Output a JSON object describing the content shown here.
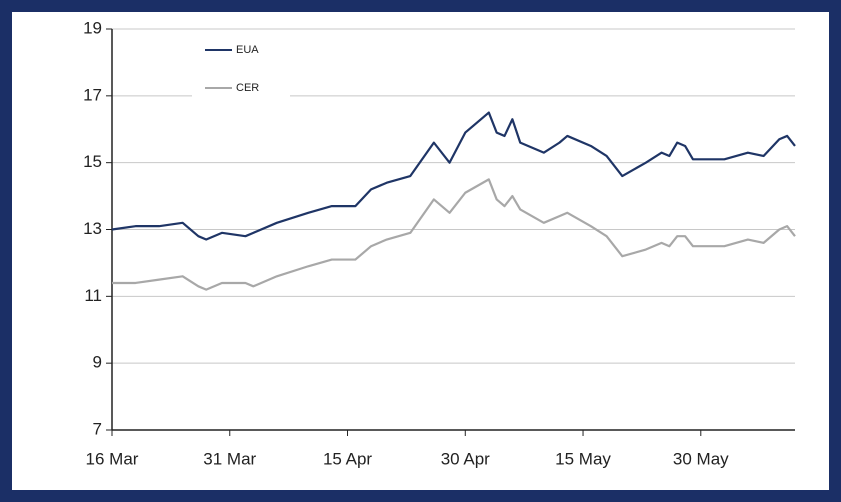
{
  "chart_data": {
    "type": "line",
    "x": [
      "16 Mar",
      "19 Mar",
      "22 Mar",
      "25 Mar",
      "27 Mar",
      "28 Mar",
      "30 Mar",
      "2 Apr",
      "3 Apr",
      "6 Apr",
      "10 Apr",
      "13 Apr",
      "16 Apr",
      "18 Apr",
      "20 Apr",
      "23 Apr",
      "26 Apr",
      "28 Apr",
      "30 Apr",
      "3 May",
      "4 May",
      "5 May",
      "6 May",
      "7 May",
      "10 May",
      "12 May",
      "13 May",
      "16 May",
      "18 May",
      "20 May",
      "23 May",
      "25 May",
      "26 May",
      "27 May",
      "28 May",
      "29 May",
      "2 Jun",
      "5 Jun",
      "7 Jun",
      "9 Jun",
      "10 Jun",
      "11 Jun"
    ],
    "series": [
      {
        "name": "EUA",
        "color": "#1f3566",
        "values": [
          13.0,
          13.1,
          13.1,
          13.2,
          12.8,
          12.7,
          12.9,
          12.8,
          12.9,
          13.2,
          13.5,
          13.7,
          13.7,
          14.2,
          14.4,
          14.6,
          15.6,
          15.0,
          15.9,
          16.5,
          15.9,
          15.8,
          16.3,
          15.6,
          15.3,
          15.6,
          15.8,
          15.5,
          15.2,
          14.6,
          15.0,
          15.3,
          15.2,
          15.6,
          15.5,
          15.1,
          15.1,
          15.3,
          15.2,
          15.7,
          15.8,
          15.5
        ]
      },
      {
        "name": "CER",
        "color": "#a8a8a8",
        "values": [
          11.4,
          11.4,
          11.5,
          11.6,
          11.3,
          11.2,
          11.4,
          11.4,
          11.3,
          11.6,
          11.9,
          12.1,
          12.1,
          12.5,
          12.7,
          12.9,
          13.9,
          13.5,
          14.1,
          14.5,
          13.9,
          13.7,
          14.0,
          13.6,
          13.2,
          13.4,
          13.5,
          13.1,
          12.8,
          12.2,
          12.4,
          12.6,
          12.5,
          12.8,
          12.8,
          12.5,
          12.5,
          12.7,
          12.6,
          13.0,
          13.1,
          12.8
        ]
      }
    ],
    "xlim": [
      "16 Mar",
      "11 Jun"
    ],
    "xticks": [
      "16 Mar",
      "31 Mar",
      "15 Apr",
      "30 Apr",
      "15 May",
      "30 May"
    ],
    "ylim": [
      7,
      19
    ],
    "yticks": [
      7,
      9,
      11,
      13,
      15,
      17,
      19
    ],
    "grid": true,
    "legend": "upper-left"
  }
}
